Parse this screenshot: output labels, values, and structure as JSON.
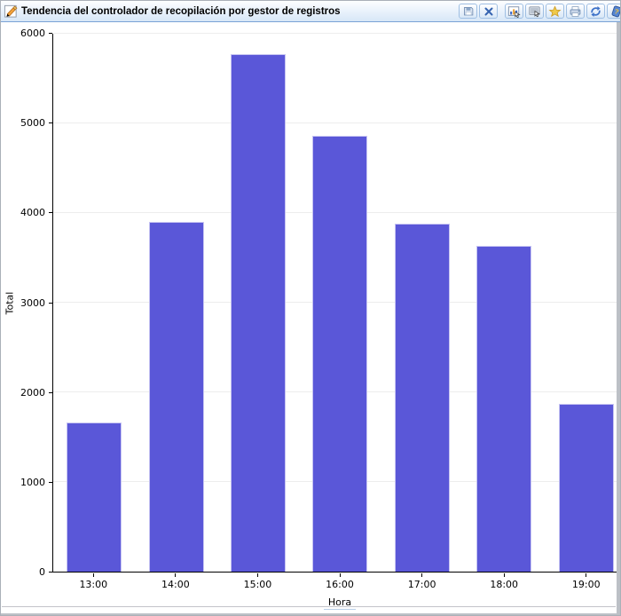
{
  "window": {
    "title": "Tendencia del controlador de recopilación por gestor de registros",
    "titlebar_icon": "edit-pencil-icon",
    "toolbar": {
      "buttons": [
        {
          "icon": "save-icon"
        },
        {
          "icon": "close-icon"
        },
        {
          "icon": "chart-view-icon"
        },
        {
          "icon": "monitor-view-icon"
        },
        {
          "icon": "favorite-star-icon"
        },
        {
          "icon": "print-icon"
        },
        {
          "icon": "refresh-icon"
        },
        {
          "icon": "help-icon"
        }
      ]
    }
  },
  "chart_data": {
    "type": "bar",
    "title": "Tendencia del controlador de recopilación por gestor de registros",
    "categories": [
      "13:00",
      "14:00",
      "15:00",
      "16:00",
      "17:00",
      "18:00",
      "19:00"
    ],
    "values": [
      1660,
      3900,
      5770,
      4860,
      3880,
      3630,
      1870
    ],
    "xlabel": "Hora",
    "ylabel": "Total",
    "ylim": [
      0,
      6000
    ],
    "yticks": [
      0,
      1000,
      2000,
      3000,
      4000,
      5000,
      6000
    ],
    "grid": true,
    "legend": "none",
    "bar_color": "#5a57d8",
    "bar_border_color": "#c6c4f2",
    "gridline_color": "#ededed",
    "axis_color": "#000000"
  }
}
